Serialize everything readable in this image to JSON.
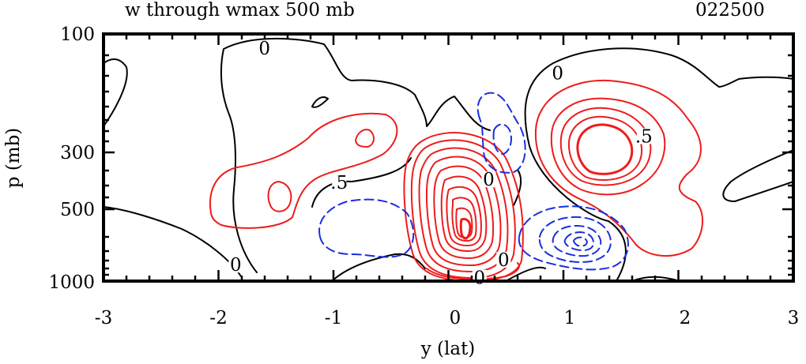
{
  "chart_data": {
    "type": "contour",
    "title": "w through wmax 500 mb",
    "run_label": "022500",
    "xlabel": "y (lat)",
    "ylabel": "p (mb)",
    "xlim": [
      -3,
      3
    ],
    "x_ticks": [
      "-3",
      "-2",
      "-1",
      "0",
      "1",
      "2",
      "3"
    ],
    "x_tick_values": [
      -3,
      -2,
      -1,
      0,
      1,
      2,
      3
    ],
    "y_ticks": [
      "100",
      "300",
      "500",
      "1000"
    ],
    "y_tick_values": [
      100,
      300,
      500,
      1000
    ],
    "y_scale": "log pressure (inverted)",
    "colors": {
      "positive": "#ee1c1c",
      "negative": "#1a2ee0",
      "zero": "#000000"
    },
    "contour_labels": [
      {
        "text": "0",
        "lat": -1.6,
        "p": 115
      },
      {
        "text": "0",
        "lat": 0.95,
        "p": 145
      },
      {
        "text": ".5",
        "lat": 1.7,
        "p": 260
      },
      {
        "text": ".5",
        "lat": -0.95,
        "p": 395
      },
      {
        "text": "0",
        "lat": -1.85,
        "p": 860
      },
      {
        "text": "0",
        "lat": 0.35,
        "p": 385
      },
      {
        "text": "0",
        "lat": 0.48,
        "p": 820
      },
      {
        "text": "0",
        "lat": 0.27,
        "p": 975
      }
    ]
  }
}
